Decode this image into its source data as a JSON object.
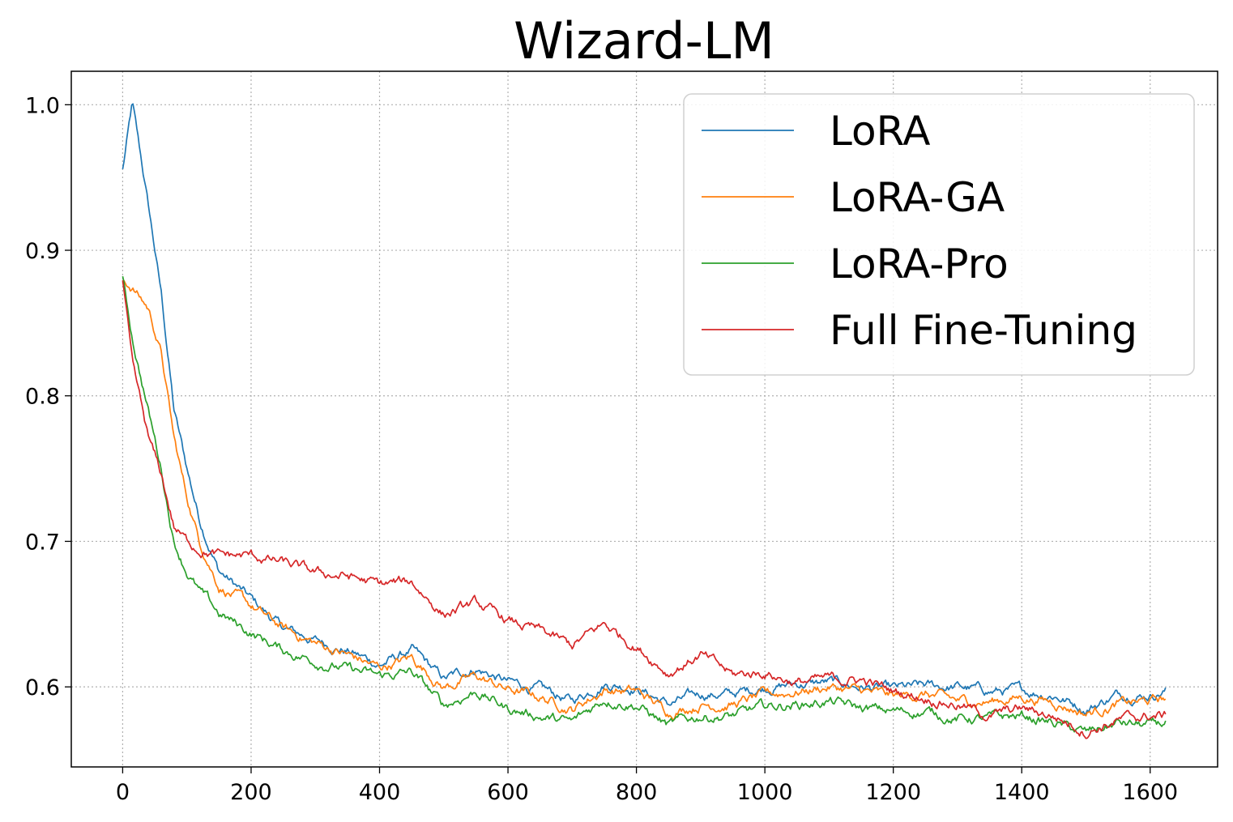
{
  "chart_data": {
    "type": "line",
    "title": "Wizard-LM",
    "xlabel": "",
    "ylabel": "",
    "xlim": [
      -80,
      1705
    ],
    "ylim": [
      0.545,
      1.023
    ],
    "x_ticks": [
      0,
      200,
      400,
      600,
      800,
      1000,
      1200,
      1400,
      1600
    ],
    "x_tick_labels": [
      "0",
      "200",
      "400",
      "600",
      "800",
      "1000",
      "1200",
      "1400",
      "1600"
    ],
    "y_ticks": [
      0.6,
      0.7,
      0.8,
      0.9,
      1.0
    ],
    "y_tick_labels": [
      "0.6",
      "0.7",
      "0.8",
      "0.9",
      "1.0"
    ],
    "grid": true,
    "legend_position": "top-right",
    "x": [
      0,
      15,
      40,
      60,
      80,
      100,
      120,
      150,
      200,
      250,
      300,
      350,
      400,
      450,
      500,
      550,
      600,
      650,
      700,
      750,
      800,
      850,
      900,
      950,
      1000,
      1050,
      1100,
      1150,
      1200,
      1250,
      1300,
      1350,
      1400,
      1450,
      1500,
      1550,
      1600,
      1625
    ],
    "series": [
      {
        "name": "LoRA",
        "color": "#1f77b4",
        "values": [
          0.955,
          1.0,
          0.93,
          0.87,
          0.79,
          0.75,
          0.715,
          0.68,
          0.66,
          0.64,
          0.632,
          0.625,
          0.615,
          0.625,
          0.605,
          0.613,
          0.603,
          0.598,
          0.59,
          0.603,
          0.6,
          0.588,
          0.595,
          0.595,
          0.6,
          0.602,
          0.603,
          0.6,
          0.598,
          0.6,
          0.6,
          0.597,
          0.597,
          0.595,
          0.585,
          0.595,
          0.595,
          0.598
        ]
      },
      {
        "name": "LoRA-GA",
        "color": "#ff7f0e",
        "values": [
          0.88,
          0.875,
          0.86,
          0.83,
          0.77,
          0.73,
          0.7,
          0.67,
          0.655,
          0.64,
          0.63,
          0.622,
          0.613,
          0.62,
          0.6,
          0.607,
          0.598,
          0.593,
          0.585,
          0.598,
          0.597,
          0.583,
          0.588,
          0.588,
          0.594,
          0.597,
          0.6,
          0.597,
          0.593,
          0.595,
          0.59,
          0.59,
          0.593,
          0.59,
          0.582,
          0.588,
          0.59,
          0.592
        ]
      },
      {
        "name": "LoRA-Pro",
        "color": "#2ca02c",
        "values": [
          0.88,
          0.84,
          0.79,
          0.75,
          0.7,
          0.68,
          0.665,
          0.65,
          0.637,
          0.625,
          0.618,
          0.612,
          0.607,
          0.61,
          0.587,
          0.597,
          0.585,
          0.58,
          0.575,
          0.592,
          0.588,
          0.573,
          0.58,
          0.58,
          0.586,
          0.588,
          0.59,
          0.585,
          0.583,
          0.583,
          0.578,
          0.578,
          0.58,
          0.575,
          0.568,
          0.575,
          0.573,
          0.575
        ]
      },
      {
        "name": "Full Fine-Tuning",
        "color": "#d62728",
        "values": [
          0.88,
          0.82,
          0.77,
          0.745,
          0.71,
          0.7,
          0.695,
          0.69,
          0.69,
          0.685,
          0.678,
          0.676,
          0.67,
          0.672,
          0.65,
          0.657,
          0.645,
          0.638,
          0.628,
          0.643,
          0.628,
          0.61,
          0.622,
          0.608,
          0.61,
          0.603,
          0.605,
          0.605,
          0.597,
          0.593,
          0.588,
          0.58,
          0.585,
          0.58,
          0.57,
          0.577,
          0.58,
          0.58
        ]
      }
    ]
  }
}
